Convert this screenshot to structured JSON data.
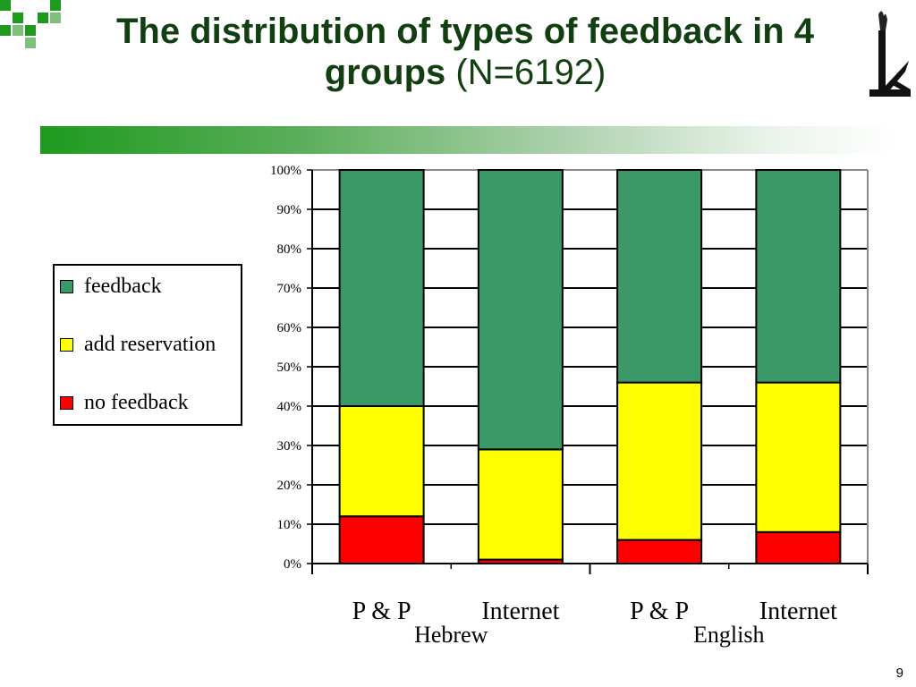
{
  "slide": {
    "title_bold": "The distribution of types of feedback in 4 groups",
    "title_normal": "(N=6192)",
    "page_number": "9"
  },
  "colors": {
    "title": "#123f12",
    "accent_green": "#1e9a1e",
    "feedback": "#3a9966",
    "add_reservation": "#ffff00",
    "no_feedback": "#ff0000"
  },
  "legend": {
    "items": [
      {
        "label": "feedback",
        "color": "#3a9966"
      },
      {
        "label": "add reservation",
        "color": "#ffff00"
      },
      {
        "label": "no feedback",
        "color": "#ff0000"
      }
    ]
  },
  "chart_data": {
    "type": "bar",
    "stacked": true,
    "percent": true,
    "categories": [
      "P & P",
      "Internet",
      "P & P",
      "Internet"
    ],
    "groups": [
      {
        "label": "Hebrew",
        "categories": [
          0,
          1
        ]
      },
      {
        "label": "English",
        "categories": [
          2,
          3
        ]
      }
    ],
    "series": [
      {
        "name": "no feedback",
        "color": "#ff0000",
        "values": [
          12,
          1,
          6,
          8
        ]
      },
      {
        "name": "add reservation",
        "color": "#ffff00",
        "values": [
          28,
          28,
          40,
          38
        ]
      },
      {
        "name": "feedback",
        "color": "#3a9966",
        "values": [
          60,
          71,
          54,
          54
        ]
      }
    ],
    "y_ticks": [
      "0%",
      "10%",
      "20%",
      "30%",
      "40%",
      "50%",
      "60%",
      "70%",
      "80%",
      "90%",
      "100%"
    ],
    "ylim": [
      0,
      100
    ],
    "grid": true,
    "legend_position": "left"
  }
}
